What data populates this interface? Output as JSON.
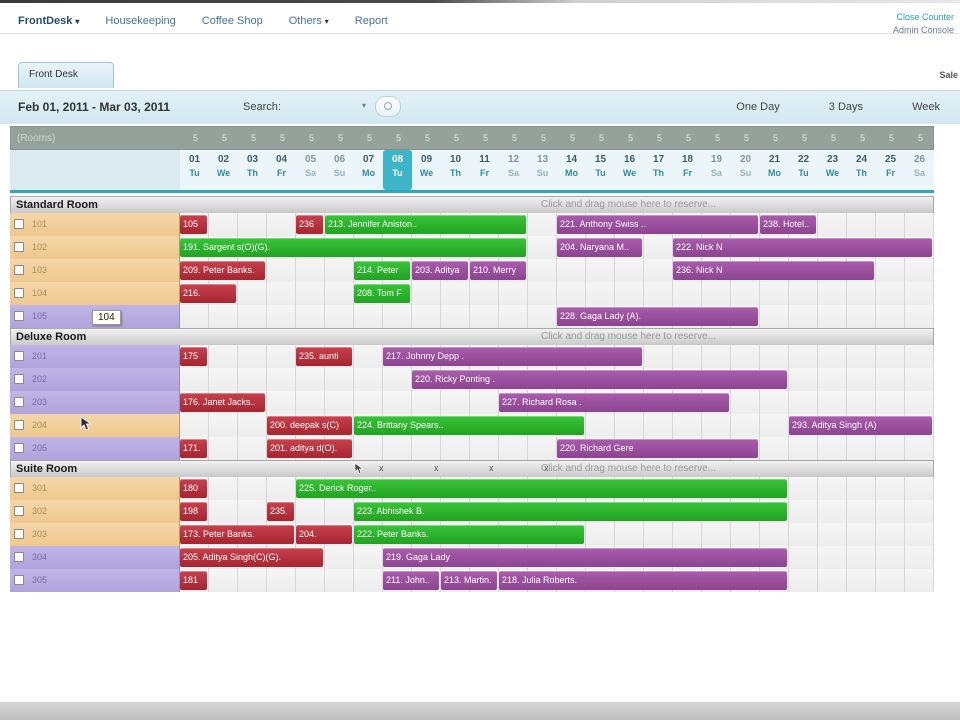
{
  "nav": {
    "items": [
      {
        "label": "FrontDesk",
        "caret": true,
        "first": true
      },
      {
        "label": "Housekeeping",
        "caret": false
      },
      {
        "label": "Coffee Shop",
        "caret": false
      },
      {
        "label": "Others",
        "caret": true
      },
      {
        "label": "Report",
        "caret": false
      }
    ],
    "close_counter": "Close Counter",
    "admin_console": "Admin Console"
  },
  "tab": {
    "label": "Front Desk",
    "right_label": "Sale"
  },
  "toolbar": {
    "date_range": "Feb 01, 2011 - Mar 03, 2011",
    "search_label": "Search:",
    "search_value": "",
    "views": [
      "One Day",
      "3 Days",
      "Week"
    ]
  },
  "rooms_strip": {
    "label": "(Rooms)",
    "values": [
      "5",
      "5",
      "5",
      "5",
      "5",
      "5",
      "5",
      "5",
      "5",
      "5",
      "5",
      "5",
      "5",
      "5",
      "5",
      "5",
      "5",
      "5",
      "5",
      "5",
      "5",
      "5",
      "5",
      "5",
      "5",
      "5"
    ]
  },
  "calendar": {
    "selected_index": 7,
    "days": [
      {
        "num": "01",
        "dow": "Tu"
      },
      {
        "num": "02",
        "dow": "We"
      },
      {
        "num": "03",
        "dow": "Th"
      },
      {
        "num": "04",
        "dow": "Fr"
      },
      {
        "num": "05",
        "dow": "Sa"
      },
      {
        "num": "06",
        "dow": "Su"
      },
      {
        "num": "07",
        "dow": "Mo"
      },
      {
        "num": "08",
        "dow": "Tu"
      },
      {
        "num": "09",
        "dow": "We"
      },
      {
        "num": "10",
        "dow": "Th"
      },
      {
        "num": "11",
        "dow": "Fr"
      },
      {
        "num": "12",
        "dow": "Sa"
      },
      {
        "num": "13",
        "dow": "Su"
      },
      {
        "num": "14",
        "dow": "Mo"
      },
      {
        "num": "15",
        "dow": "Tu"
      },
      {
        "num": "16",
        "dow": "We"
      },
      {
        "num": "17",
        "dow": "Th"
      },
      {
        "num": "18",
        "dow": "Fr"
      },
      {
        "num": "19",
        "dow": "Sa"
      },
      {
        "num": "20",
        "dow": "Su"
      },
      {
        "num": "21",
        "dow": "Mo"
      },
      {
        "num": "22",
        "dow": "Tu"
      },
      {
        "num": "23",
        "dow": "We"
      },
      {
        "num": "24",
        "dow": "Th"
      },
      {
        "num": "25",
        "dow": "Fr"
      },
      {
        "num": "26",
        "dow": "Sa"
      }
    ]
  },
  "hint": "Click and drag mouse here to reserve...",
  "tooltip": {
    "text": "104"
  },
  "colors": {
    "red": "#b8303c",
    "green": "#2cb42c",
    "purple": "#9c509f",
    "accent": "#3db4c8"
  },
  "sections": [
    {
      "title": "Standard Room",
      "marks": "",
      "rows": [
        {
          "room": "101",
          "style": "tan",
          "bars": [
            {
              "start": 1,
              "span": 1,
              "color": "red",
              "label": "105"
            },
            {
              "start": 5,
              "span": 1,
              "color": "red",
              "label": "236"
            },
            {
              "start": 6,
              "span": 7,
              "color": "green",
              "label": "213. Jennifer Aniston.."
            },
            {
              "start": 14,
              "span": 7,
              "color": "purple",
              "label": "221. Anthony Swiss .."
            },
            {
              "start": 21,
              "span": 2,
              "color": "purple",
              "label": "238. Hotel.."
            }
          ]
        },
        {
          "room": "102",
          "style": "tan",
          "bars": [
            {
              "start": 1,
              "span": 12,
              "color": "green",
              "label": "191. Sargent s(O)(G)."
            },
            {
              "start": 14,
              "span": 3,
              "color": "purple",
              "label": "204. Naryana M.."
            },
            {
              "start": 18,
              "span": 9,
              "color": "purple",
              "label": "222. Nick N"
            }
          ]
        },
        {
          "room": "103",
          "style": "tan",
          "bars": [
            {
              "start": 1,
              "span": 3,
              "color": "red",
              "label": "209. Peter Banks."
            },
            {
              "start": 7,
              "span": 2,
              "color": "green",
              "label": "214. Peter"
            },
            {
              "start": 9,
              "span": 2,
              "color": "purple",
              "label": "203. Aditya"
            },
            {
              "start": 11,
              "span": 2,
              "color": "purple",
              "label": "210. Merry"
            },
            {
              "start": 18,
              "span": 7,
              "color": "purple",
              "label": "236. Nick N"
            }
          ]
        },
        {
          "room": "104",
          "style": "tan",
          "bars": [
            {
              "start": 1,
              "span": 2,
              "color": "red",
              "label": "216."
            },
            {
              "start": 7,
              "span": 2,
              "color": "green",
              "label": "208. Tom F"
            }
          ]
        },
        {
          "room": "105",
          "style": "lav",
          "bars": [
            {
              "start": 14,
              "span": 7,
              "color": "purple",
              "label": "228. Gaga Lady (A)."
            }
          ]
        }
      ]
    },
    {
      "title": "Deluxe Room",
      "marks": "",
      "rows": [
        {
          "room": "201",
          "style": "lav",
          "bars": [
            {
              "start": 1,
              "span": 1,
              "color": "red",
              "label": "175"
            },
            {
              "start": 5,
              "span": 2,
              "color": "red",
              "label": "235. aunti"
            },
            {
              "start": 8,
              "span": 9,
              "color": "purple",
              "label": "217. Johnny Depp ."
            }
          ]
        },
        {
          "room": "202",
          "style": "lav",
          "bars": [
            {
              "start": 9,
              "span": 13,
              "color": "purple",
              "label": "220. Ricky Ponting ."
            }
          ]
        },
        {
          "room": "203",
          "style": "lav",
          "bars": [
            {
              "start": 1,
              "span": 3,
              "color": "red",
              "label": "176. Janet Jacks.."
            },
            {
              "start": 12,
              "span": 8,
              "color": "purple",
              "label": "227. Richard Rosa ."
            }
          ]
        },
        {
          "room": "204",
          "style": "tan",
          "cursor": true,
          "bars": [
            {
              "start": 4,
              "span": 3,
              "color": "red",
              "label": "200. deepak s(C)"
            },
            {
              "start": 7,
              "span": 8,
              "color": "green",
              "label": "224. Brittany Spears.."
            },
            {
              "start": 22,
              "span": 5,
              "color": "purple",
              "label": "293. Aditya Singh (A)"
            }
          ]
        },
        {
          "room": "205",
          "style": "lav",
          "bars": [
            {
              "start": 1,
              "span": 1,
              "color": "red",
              "label": "171."
            },
            {
              "start": 4,
              "span": 3,
              "color": "red",
              "label": "201. aditya d(O)."
            },
            {
              "start": 14,
              "span": 7,
              "color": "purple",
              "label": "220. Richard Gere"
            }
          ]
        }
      ]
    },
    {
      "title": "Suite Room",
      "marks": "x x x x",
      "rows": [
        {
          "room": "301",
          "style": "tan",
          "bars": [
            {
              "start": 1,
              "span": 1,
              "color": "red",
              "label": "180"
            },
            {
              "start": 5,
              "span": 17,
              "color": "green",
              "label": "225. Derick Roger.."
            }
          ]
        },
        {
          "room": "302",
          "style": "tan",
          "bars": [
            {
              "start": 1,
              "span": 1,
              "color": "red",
              "label": "198"
            },
            {
              "start": 4,
              "span": 1,
              "color": "red",
              "label": "235."
            },
            {
              "start": 7,
              "span": 15,
              "color": "green",
              "label": "223. Abhishek B."
            }
          ]
        },
        {
          "room": "303",
          "style": "tan",
          "bars": [
            {
              "start": 1,
              "span": 4,
              "color": "red",
              "label": "173. Peter Banks."
            },
            {
              "start": 5,
              "span": 2,
              "color": "red",
              "label": "204."
            },
            {
              "start": 7,
              "span": 8,
              "color": "green",
              "label": "222. Peter Banks."
            }
          ]
        },
        {
          "room": "304",
          "style": "lav",
          "bars": [
            {
              "start": 1,
              "span": 5,
              "color": "red",
              "label": "205. Aditya Singh(C)(G)."
            },
            {
              "start": 8,
              "span": 14,
              "color": "purple",
              "label": "219. Gaga Lady"
            }
          ]
        },
        {
          "room": "305",
          "style": "lav",
          "bars": [
            {
              "start": 1,
              "span": 1,
              "color": "red",
              "label": "181"
            },
            {
              "start": 8,
              "span": 2,
              "color": "purple",
              "label": "211. John.."
            },
            {
              "start": 10,
              "span": 2,
              "color": "purple",
              "label": "213. Martin."
            },
            {
              "start": 12,
              "span": 10,
              "color": "purple",
              "label": "218. Julia Roberts."
            }
          ]
        }
      ]
    }
  ]
}
